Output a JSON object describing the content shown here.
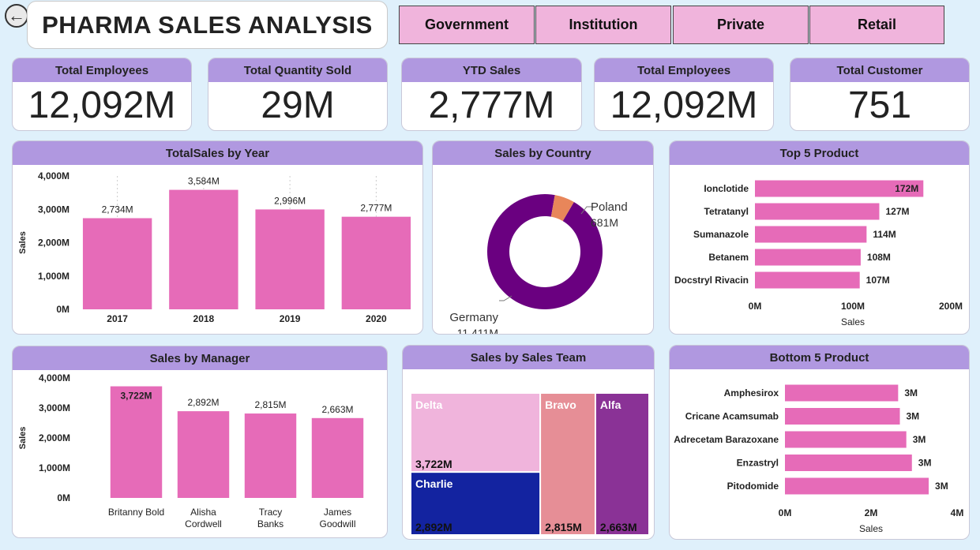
{
  "header": {
    "back_glyph": "←",
    "title": "PHARMA SALES ANALYSIS",
    "segments": [
      "Government",
      "Institution",
      "Private",
      "Retail"
    ]
  },
  "kpis": [
    {
      "label": "Total Employees",
      "value": "12,092M"
    },
    {
      "label": "Total Quantity Sold",
      "value": "29M"
    },
    {
      "label": "YTD Sales",
      "value": "2,777M"
    },
    {
      "label": "Total Employees",
      "value": "12,092M"
    },
    {
      "label": "Total Customer",
      "value": "751"
    }
  ],
  "colors": {
    "bar": "#e66bb8",
    "header": "#b098e0",
    "segment": "#f0b4dc",
    "germany": "#6a0080",
    "poland": "#e8865a",
    "delta": "#f0b4dc",
    "charlie": "#1323a0",
    "bravo": "#e68e96",
    "alfa": "#8a3296"
  },
  "chart_data": [
    {
      "type": "bar",
      "title": "TotalSales by Year",
      "categories": [
        "2017",
        "2018",
        "2019",
        "2020"
      ],
      "values": [
        2734,
        3584,
        2996,
        2777
      ],
      "data_labels": [
        "2,734M",
        "3,584M",
        "2,996M",
        "2,777M"
      ],
      "ylabel": "Sales",
      "ylim": [
        0,
        4000
      ],
      "yticks": [
        "0M",
        "1,000M",
        "2,000M",
        "3,000M",
        "4,000M"
      ],
      "grid": false
    },
    {
      "type": "pie",
      "title": "Sales by Country",
      "donut": true,
      "slices": [
        {
          "name": "Germany",
          "value": 11411,
          "label": "11,411M"
        },
        {
          "name": "Poland",
          "value": 681,
          "label": "681M"
        }
      ]
    },
    {
      "type": "bar",
      "orientation": "horizontal",
      "title": "Top 5 Product",
      "categories": [
        "Ionclotide",
        "Tetratanyl",
        "Sumanazole",
        "Betanem",
        "Docstryl Rivacin"
      ],
      "values": [
        172,
        127,
        114,
        108,
        107
      ],
      "data_labels": [
        "172M",
        "127M",
        "114M",
        "108M",
        "107M"
      ],
      "xlabel": "Sales",
      "xlim": [
        0,
        200
      ],
      "xticks": [
        "0M",
        "100M",
        "200M"
      ]
    },
    {
      "type": "bar",
      "title": "Sales by Manager",
      "categories": [
        "Britanny Bold",
        "Alisha Cordwell",
        "Tracy Banks",
        "James Goodwill"
      ],
      "values": [
        3722,
        2892,
        2815,
        2663
      ],
      "data_labels": [
        "3,722M",
        "2,892M",
        "2,815M",
        "2,663M"
      ],
      "ylabel": "Sales",
      "ylim": [
        0,
        4000
      ],
      "yticks": [
        "0M",
        "1,000M",
        "2,000M",
        "3,000M",
        "4,000M"
      ]
    },
    {
      "type": "treemap",
      "title": "Sales by Sales Team",
      "items": [
        {
          "name": "Delta",
          "value": 3722,
          "label": "3,722M"
        },
        {
          "name": "Charlie",
          "value": 2892,
          "label": "2,892M"
        },
        {
          "name": "Bravo",
          "value": 2815,
          "label": "2,815M"
        },
        {
          "name": "Alfa",
          "value": 2663,
          "label": "2,663M"
        }
      ]
    },
    {
      "type": "bar",
      "orientation": "horizontal",
      "title": "Bottom 5 Product",
      "categories": [
        "Amphesirox",
        "Cricane Acamsumab",
        "Adrecetam Barazoxane",
        "Enzastryl",
        "Pitodomide"
      ],
      "values": [
        2.63,
        2.67,
        2.82,
        2.95,
        3.34
      ],
      "data_labels": [
        "3M",
        "3M",
        "3M",
        "3M",
        "3M"
      ],
      "xlabel": "Sales",
      "xlim": [
        0,
        4
      ],
      "xticks": [
        "0M",
        "2M",
        "4M"
      ]
    }
  ]
}
